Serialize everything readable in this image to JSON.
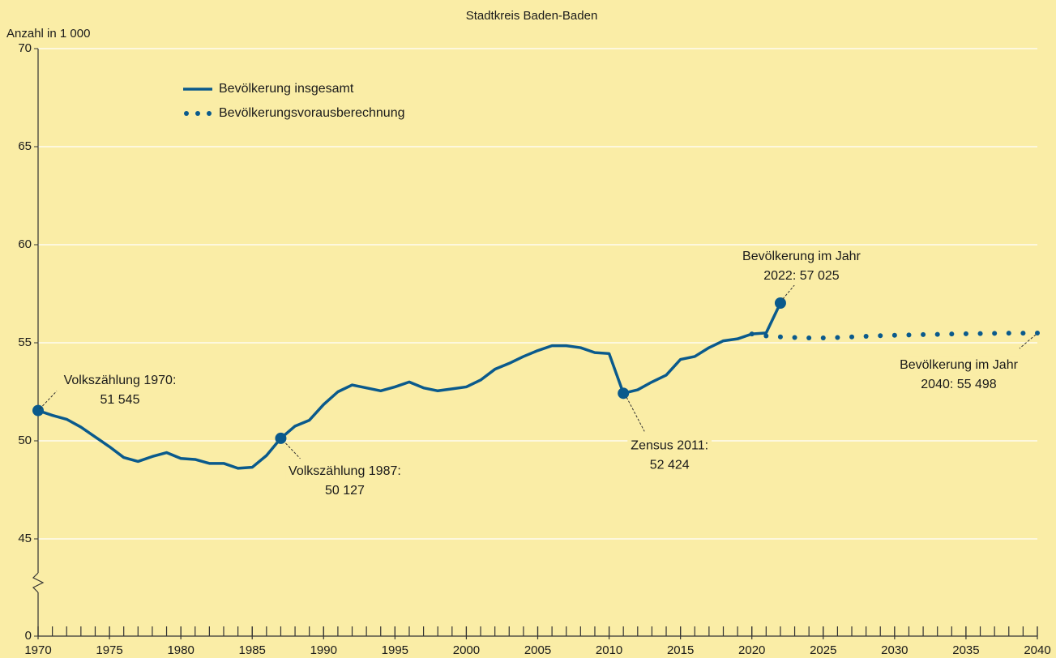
{
  "chart_data": {
    "type": "line",
    "title": "Stadtkreis Baden-Baden",
    "y_label": "Anzahl in 1 000",
    "xlim": [
      1970,
      2040
    ],
    "xticks": [
      1970,
      1975,
      1980,
      1985,
      1990,
      1995,
      2000,
      2005,
      2010,
      2015,
      2020,
      2025,
      2030,
      2035,
      2040
    ],
    "xminorticks": [
      1970,
      1971,
      1972,
      1973,
      1974,
      1975,
      1976,
      1977,
      1978,
      1979,
      1980,
      1981,
      1982,
      1983,
      1984,
      1985,
      1986,
      1987,
      1988,
      1989,
      1990,
      1991,
      1992,
      1993,
      1994,
      1995,
      1996,
      1997,
      1998,
      1999,
      2000,
      2001,
      2002,
      2003,
      2004,
      2005,
      2006,
      2007,
      2008,
      2009,
      2010,
      2011,
      2012,
      2013,
      2014,
      2015,
      2016,
      2017,
      2018,
      2019,
      2020,
      2021,
      2022,
      2023,
      2024,
      2025,
      2026,
      2027,
      2028,
      2029,
      2030,
      2031,
      2032,
      2033,
      2034,
      2035,
      2036,
      2037,
      2038,
      2039,
      2040
    ],
    "ylim": [
      0,
      70
    ],
    "yticks": [
      0,
      45,
      50,
      55,
      60,
      65,
      70
    ],
    "axis_break": true,
    "grid": true,
    "legend": "upper left",
    "series": [
      {
        "name": "Bevölkerung insgesamt",
        "color": "#0a5a8c",
        "style": "solid",
        "x": [
          1970,
          1971,
          1972,
          1973,
          1974,
          1975,
          1976,
          1977,
          1978,
          1979,
          1980,
          1981,
          1982,
          1983,
          1984,
          1985,
          1986,
          1987,
          1988,
          1989,
          1990,
          1991,
          1992,
          1993,
          1994,
          1995,
          1996,
          1997,
          1998,
          1999,
          2000,
          2001,
          2002,
          2003,
          2004,
          2005,
          2006,
          2007,
          2008,
          2009,
          2010,
          2011,
          2012,
          2013,
          2014,
          2015,
          2016,
          2017,
          2018,
          2019,
          2020,
          2021,
          2022
        ],
        "values": [
          51.545,
          51.3,
          51.1,
          50.7,
          50.2,
          49.7,
          49.15,
          48.95,
          49.2,
          49.4,
          49.1,
          49.05,
          48.85,
          48.85,
          48.6,
          48.65,
          49.25,
          50.127,
          50.75,
          51.05,
          51.85,
          52.5,
          52.85,
          52.7,
          52.55,
          52.75,
          53.0,
          52.7,
          52.55,
          52.65,
          52.75,
          53.1,
          53.65,
          53.95,
          54.3,
          54.6,
          54.85,
          54.85,
          54.75,
          54.5,
          54.45,
          52.424,
          52.6,
          53.0,
          53.35,
          54.15,
          54.3,
          54.75,
          55.1,
          55.2,
          55.45,
          55.5,
          57.025
        ],
        "point_labels": [
          [
            "Volkszählung 1970:",
            "51 545"
          ],
          null,
          null,
          null,
          null,
          null,
          null,
          null,
          null,
          null,
          null,
          null,
          null,
          null,
          null,
          null,
          null,
          [
            "Volkszählung 1987:",
            "50 127"
          ],
          null,
          null,
          null,
          null,
          null,
          null,
          null,
          null,
          null,
          null,
          null,
          null,
          null,
          null,
          null,
          null,
          null,
          null,
          null,
          null,
          null,
          null,
          null,
          [
            "Zensus 2011:",
            "52 424"
          ],
          null,
          null,
          null,
          null,
          null,
          null,
          null,
          null,
          null,
          null,
          [
            "Bevölkerung im Jahr",
            "2022: 57 025"
          ]
        ]
      },
      {
        "name": "Bevölkerungsvorausberechnung",
        "color": "#0a5a8c",
        "style": "dotted",
        "x": [
          2020,
          2021,
          2022,
          2023,
          2024,
          2025,
          2026,
          2027,
          2028,
          2029,
          2030,
          2031,
          2032,
          2033,
          2034,
          2035,
          2036,
          2037,
          2038,
          2039,
          2040
        ],
        "values": [
          55.45,
          55.35,
          55.3,
          55.27,
          55.25,
          55.25,
          55.27,
          55.3,
          55.33,
          55.36,
          55.38,
          55.4,
          55.42,
          55.43,
          55.45,
          55.46,
          55.47,
          55.48,
          55.49,
          55.49,
          55.498
        ],
        "point_labels": [
          null,
          null,
          null,
          null,
          null,
          null,
          null,
          null,
          null,
          null,
          null,
          null,
          null,
          null,
          null,
          null,
          null,
          null,
          null,
          null,
          [
            "Bevölkerung im Jahr",
            "2040: 55 498"
          ]
        ]
      }
    ]
  }
}
